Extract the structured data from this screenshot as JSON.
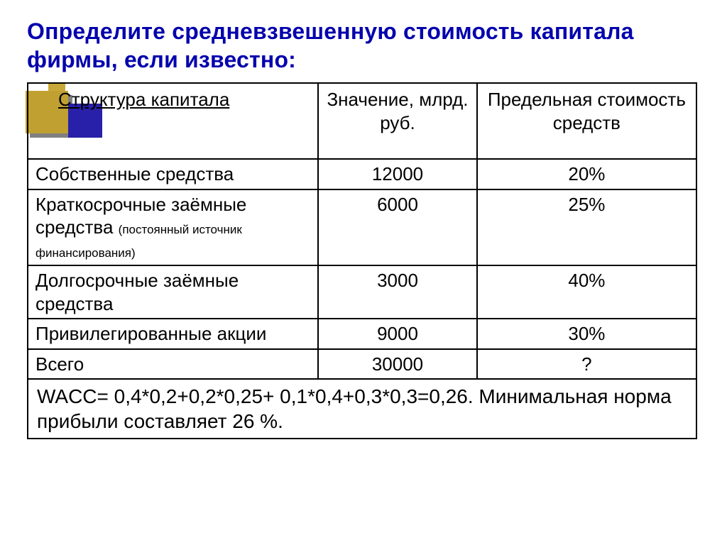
{
  "title": "Определите средневзвешенную стоимость капитала фирмы, если известно:",
  "columns": [
    "Структура капитала",
    "Значение, млрд. руб.",
    "Предельная стоимость средств"
  ],
  "rows": [
    {
      "label": "Собственные средства",
      "sub": "",
      "value": "12000",
      "cost": "20%"
    },
    {
      "label": "Краткосрочные заёмные средства",
      "sub": "(постоянный источник финансирования)",
      "value": "6000",
      "cost": "25%"
    },
    {
      "label": "Долгосрочные заёмные средства",
      "sub": "",
      "value": "3000",
      "cost": "40%"
    },
    {
      "label": "Привилегированные акции",
      "sub": "",
      "value": "9000",
      "cost": "30%"
    },
    {
      "label": "Всего",
      "sub": "",
      "value": "30000",
      "cost": "?"
    }
  ],
  "footer": "WACC= 0,4*0,2+0,2*0,25+ 0,1*0,4+0,3*0,3=0,26. Минимальная норма прибыли составляет 26 %.",
  "colors": {
    "title": "#0402ad",
    "gold": "#c0a030",
    "blue": "#2820a8"
  }
}
